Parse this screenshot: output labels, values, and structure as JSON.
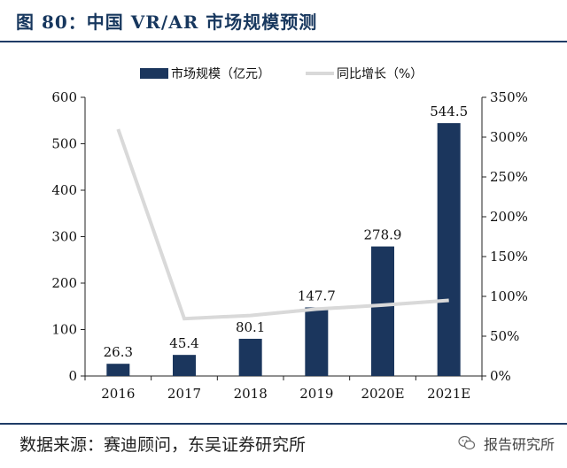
{
  "figure": {
    "title": "图 80：中国 VR/AR 市场规模预测",
    "source": "数据来源：赛迪顾问，东吴证券研究所",
    "watermark": "报告研究所",
    "watermark_icon": "wechat-icon"
  },
  "colors": {
    "bar": "#1b365d",
    "line": "#d9d9d9",
    "title": "#17375e",
    "rule": "#1f3c66"
  },
  "chart_data": {
    "type": "bar",
    "categories": [
      "2016",
      "2017",
      "2018",
      "2019",
      "2020E",
      "2021E"
    ],
    "series": [
      {
        "name": "市场规模（亿元）",
        "type": "bar",
        "axis": "left",
        "values": [
          26.3,
          45.4,
          80.1,
          147.7,
          278.9,
          544.5
        ],
        "data_labels": [
          "26.3",
          "45.4",
          "80.1",
          "147.7",
          "278.9",
          "544.5"
        ]
      },
      {
        "name": "同比增长（%）",
        "type": "line",
        "axis": "right",
        "values": [
          310,
          72,
          76,
          84,
          89,
          95
        ]
      }
    ],
    "y_left": {
      "range": [
        0,
        600
      ],
      "ticks": [
        "0",
        "100",
        "200",
        "300",
        "400",
        "500",
        "600"
      ]
    },
    "y_right": {
      "range": [
        0,
        350
      ],
      "ticks": [
        "0%",
        "50%",
        "100%",
        "150%",
        "200%",
        "250%",
        "300%",
        "350%"
      ]
    },
    "legend_position": "top",
    "grid": false
  }
}
